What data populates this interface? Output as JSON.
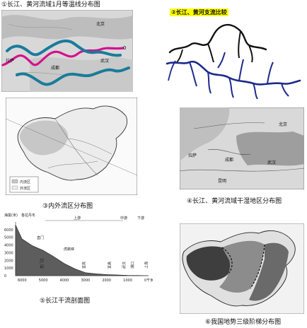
{
  "panel1": {
    "caption": "①长江、黄河流域1月等温线分布图",
    "labels": {
      "beijing": "北京",
      "zero": "0",
      "lhasa": "拉萨",
      "chengdu": "成都",
      "wuhan": "武汉"
    },
    "colors": {
      "isotherm": "#d4118e",
      "river": "#1a7b9a"
    }
  },
  "panel2": {
    "title": "②长江、黄河支流比较",
    "colors": {
      "yellow_river": "#111111",
      "yangtze": "#1d2a8c",
      "title_bg": "#ffff00"
    }
  },
  "panel3": {
    "caption": "③内外流区分布图",
    "legend": [
      "内流区",
      "外流区"
    ]
  },
  "panel4": {
    "caption": "④长江、黄河流域干湿地区分布图",
    "labels": {
      "lhasa": "拉萨",
      "chengdu": "成都",
      "wuhan": "武汉",
      "beijing": "北京",
      "kunming": "昆明"
    }
  },
  "panel5": {
    "caption": "⑤长江干流剖面图",
    "unit": "海拔(米)",
    "peak": "各拉丹冬",
    "sections": {
      "upper": "上游",
      "middle": "中游",
      "lower": "下游"
    },
    "places": [
      "直门达",
      "宜宾",
      "宜昌",
      "武汉",
      "湖口",
      "上海"
    ],
    "places_top": [
      "直门",
      "虎跳峡"
    ],
    "y_ticks": [
      "6000",
      "5000",
      "4000",
      "3000",
      "2000",
      "1000",
      "0"
    ],
    "x_ticks": [
      "6000",
      "5000",
      "4000",
      "3000",
      "2000",
      "1000",
      "0千米"
    ],
    "chart_data": {
      "type": "area",
      "x": [
        6300,
        6000,
        5500,
        5000,
        4500,
        4000,
        3500,
        3000,
        2500,
        2000,
        1500,
        1000,
        500,
        0
      ],
      "values": [
        6600,
        4800,
        3900,
        3300,
        2500,
        1600,
        900,
        400,
        250,
        150,
        100,
        50,
        30,
        0
      ],
      "xlim": [
        6300,
        0
      ],
      "ylim": [
        0,
        7000
      ]
    }
  },
  "panel6": {
    "caption": "⑥我国地势三级阶梯分布图"
  }
}
